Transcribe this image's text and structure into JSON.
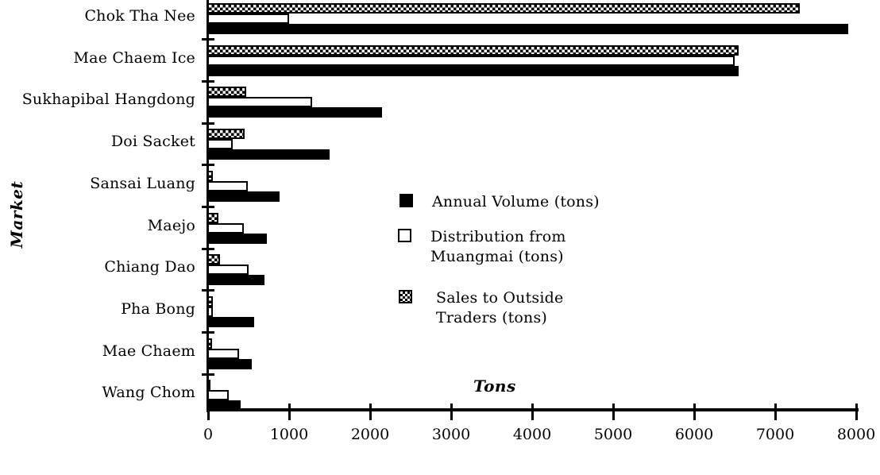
{
  "chart_data": {
    "type": "bar",
    "orientation": "horizontal",
    "title": "",
    "xlabel": "Tons",
    "ylabel": "Market",
    "xlim": [
      0,
      8000
    ],
    "xticks": [
      0,
      1000,
      2000,
      3000,
      4000,
      5000,
      6000,
      7000,
      8000
    ],
    "xtick_labels": [
      "0",
      "1000",
      "2000",
      "3000",
      "4000",
      "5000",
      "6000",
      "7000",
      "8000"
    ],
    "grid": false,
    "legend_position": "center-right",
    "categories": [
      "Chok Tha Nee",
      "Mae Chaem Ice",
      "Sukhapibal Hangdong",
      "Doi Sacket",
      "Sansai Luang",
      "Maejo",
      "Chiang Dao",
      "Pha Bong",
      "Mae Chaem",
      "Wang Chom"
    ],
    "series": [
      {
        "name": "Annual Volume (tons)",
        "key": "annual-volume",
        "style": "solid-black",
        "values": [
          7900,
          6550,
          2150,
          1500,
          880,
          730,
          700,
          570,
          540,
          400
        ]
      },
      {
        "name": "Distribution from Muangmai (tons)",
        "key": "distribution-from-muangmai",
        "style": "white-outline",
        "values": [
          1000,
          6500,
          1280,
          300,
          490,
          440,
          500,
          60,
          380,
          250
        ]
      },
      {
        "name": "Sales to Outside Traders (tons)",
        "key": "sales-to-outside-traders",
        "style": "checkered",
        "values": [
          7300,
          6550,
          470,
          450,
          60,
          130,
          150,
          60,
          50,
          30
        ]
      }
    ]
  },
  "axis": {
    "x_label": "Tons",
    "y_label": "Market"
  },
  "legend": {
    "items": [
      {
        "swatch": "black-square-icon",
        "line1": "Annual Volume (tons)",
        "line2": ""
      },
      {
        "swatch": "white-square-icon",
        "line1": "Distribution from",
        "line2": "Muangmai (tons)"
      },
      {
        "swatch": "checkered-square-icon",
        "line1": "Sales to Outside",
        "line2": "Traders (tons)"
      }
    ]
  },
  "colors": {
    "ink": "#000000",
    "background": "#ffffff",
    "bar_fill_black": "#000000",
    "bar_fill_white": "#ffffff"
  }
}
